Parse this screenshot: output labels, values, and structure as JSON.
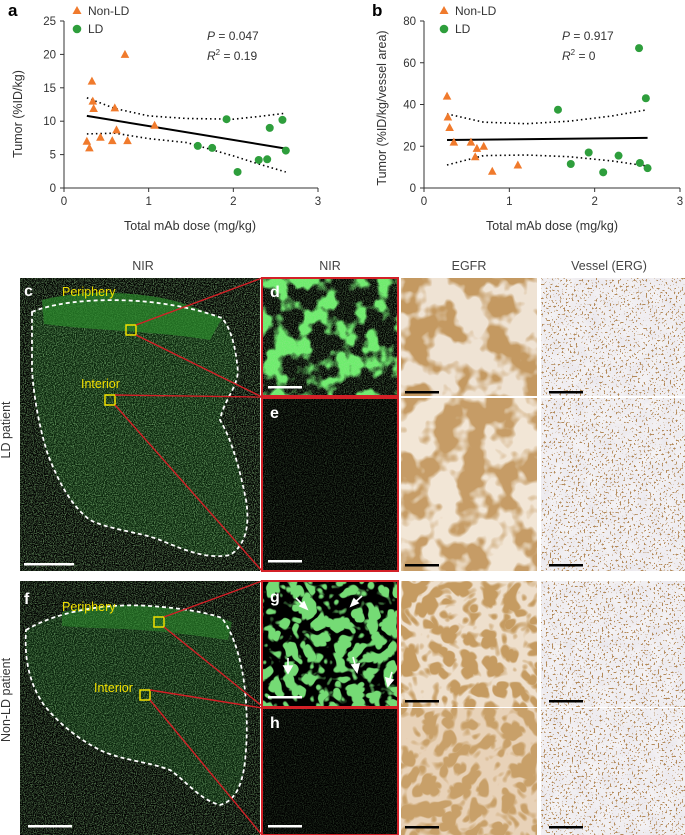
{
  "figure": {
    "panel_a": {
      "letter": "a",
      "legend": [
        {
          "label": "Non-LD",
          "color": "#f07a2c",
          "marker": "triangle"
        },
        {
          "label": "LD",
          "color": "#2e9e3c",
          "marker": "circle"
        }
      ],
      "stat_p_label": "P",
      "stat_p_value": " = 0.047",
      "stat_r_label": "R",
      "stat_r_value": " = 0.19"
    },
    "panel_b": {
      "letter": "b",
      "legend": [
        {
          "label": "Non-LD",
          "color": "#f07a2c",
          "marker": "triangle"
        },
        {
          "label": "LD",
          "color": "#2e9e3c",
          "marker": "circle"
        }
      ],
      "stat_p_label": "P",
      "stat_p_value": " = 0.917",
      "stat_r_label": "R",
      "stat_r_value": " = 0"
    },
    "columns": {
      "nir_overview": "NIR",
      "nir_zoom": "NIR",
      "egfr": "EGFR",
      "vessel": "Vessel (ERG)"
    },
    "rows": {
      "ld": "LD patient",
      "nonld": "Non-LD patient"
    },
    "regions": {
      "periphery": "Periphery",
      "interior": "Interior"
    },
    "image_panels": {
      "c": "c",
      "d": "d",
      "e": "e",
      "f": "f",
      "g": "g",
      "h": "h"
    }
  },
  "chart_data": [
    {
      "type": "scatter",
      "panel": "a",
      "xlabel": "Total mAb dose (mg/kg)",
      "ylabel": "Tumor (%ID/kg)",
      "xlim": [
        0,
        3
      ],
      "ylim": [
        0,
        25
      ],
      "xticks": [
        0,
        1,
        2,
        3
      ],
      "yticks": [
        0,
        5,
        10,
        15,
        20,
        25
      ],
      "series": [
        {
          "name": "Non-LD",
          "marker": "triangle",
          "color": "#f07a2c",
          "x": [
            0.27,
            0.3,
            0.33,
            0.34,
            0.35,
            0.43,
            0.57,
            0.6,
            0.62,
            0.72,
            0.75,
            1.07
          ],
          "y": [
            7.0,
            6.0,
            16.0,
            13.0,
            11.9,
            7.6,
            7.1,
            12.0,
            8.7,
            20.0,
            7.1,
            9.4
          ]
        },
        {
          "name": "LD",
          "marker": "circle",
          "color": "#2e9e3c",
          "x": [
            1.58,
            1.75,
            1.92,
            2.05,
            2.3,
            2.4,
            2.43,
            2.58,
            2.62
          ],
          "y": [
            6.3,
            6.0,
            10.3,
            2.4,
            4.2,
            4.3,
            9.0,
            10.2,
            5.6
          ]
        }
      ],
      "fit": {
        "x": [
          0.27,
          2.62
        ],
        "y": [
          10.8,
          5.9
        ]
      },
      "ci_upper": {
        "x": [
          0.27,
          0.6,
          1.0,
          1.45,
          2.0,
          2.3,
          2.62
        ],
        "y": [
          13.5,
          11.9,
          10.8,
          10.4,
          10.3,
          10.7,
          11.2
        ]
      },
      "ci_lower": {
        "x": [
          0.27,
          0.6,
          1.0,
          1.45,
          2.0,
          2.3,
          2.62
        ],
        "y": [
          8.1,
          8.2,
          7.4,
          6.8,
          4.8,
          3.6,
          2.4
        ]
      }
    },
    {
      "type": "scatter",
      "panel": "b",
      "xlabel": "Total mAb dose (mg/kg)",
      "ylabel": "Tumor (%ID/kg/vessel area)",
      "xlim": [
        0,
        3
      ],
      "ylim": [
        0,
        80
      ],
      "xticks": [
        0,
        1,
        2,
        3
      ],
      "yticks": [
        0,
        20,
        40,
        60,
        80
      ],
      "series": [
        {
          "name": "Non-LD",
          "marker": "triangle",
          "color": "#f07a2c",
          "x": [
            0.27,
            0.28,
            0.3,
            0.35,
            0.55,
            0.6,
            0.62,
            0.7,
            0.8,
            1.1
          ],
          "y": [
            44.0,
            34.0,
            29.0,
            22.0,
            22.0,
            15.0,
            19.0,
            20.0,
            8.0,
            11.0
          ]
        },
        {
          "name": "LD",
          "marker": "circle",
          "color": "#2e9e3c",
          "x": [
            1.57,
            1.72,
            1.93,
            2.1,
            2.28,
            2.52,
            2.53,
            2.6,
            2.62
          ],
          "y": [
            37.5,
            11.5,
            17.0,
            7.5,
            15.5,
            67.0,
            12.0,
            43.0,
            9.5
          ]
        }
      ],
      "fit": {
        "x": [
          0.27,
          2.62
        ],
        "y": [
          23.0,
          24.0
        ]
      },
      "ci_upper": {
        "x": [
          0.27,
          0.7,
          1.2,
          1.7,
          2.2,
          2.62
        ],
        "y": [
          35.5,
          31.5,
          30.8,
          32.0,
          34.5,
          37.5
        ]
      },
      "ci_lower": {
        "x": [
          0.27,
          0.7,
          1.2,
          1.7,
          2.2,
          2.62
        ],
        "y": [
          11.0,
          15.5,
          15.8,
          15.0,
          13.0,
          10.5
        ]
      }
    }
  ]
}
